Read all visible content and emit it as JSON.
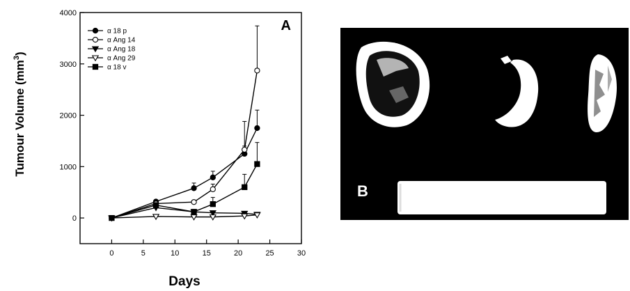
{
  "chart_data": {
    "type": "line",
    "panel_label": "A",
    "ylabel": "Tumour Volume (mm",
    "ylabel_superscript": "3",
    "ylabel_close": ")",
    "xlabel": "Days",
    "xlim": [
      -5,
      30
    ],
    "ylim": [
      -500,
      4000
    ],
    "xticks": [
      0,
      5,
      10,
      15,
      20,
      25,
      30
    ],
    "yticks": [
      0,
      1000,
      2000,
      3000,
      4000
    ],
    "grid": false,
    "legend_position": "top-left",
    "series": [
      {
        "name": "α 18 p",
        "marker": "circle-filled",
        "x": [
          0,
          7,
          13,
          16,
          21,
          23
        ],
        "y": [
          0,
          320,
          580,
          790,
          1250,
          1750
        ],
        "err": [
          0,
          30,
          100,
          120,
          150,
          350
        ]
      },
      {
        "name": "α Ang 14",
        "marker": "circle-open",
        "x": [
          0,
          7,
          13,
          16,
          21,
          23
        ],
        "y": [
          0,
          280,
          310,
          560,
          1330,
          2870
        ],
        "err": [
          0,
          20,
          30,
          100,
          550,
          870
        ]
      },
      {
        "name": "α Ang 18",
        "marker": "triangle-down-filled",
        "x": [
          0,
          7,
          13,
          16,
          21,
          23
        ],
        "y": [
          0,
          200,
          120,
          100,
          90,
          70
        ],
        "err": [
          0,
          20,
          20,
          15,
          15,
          10
        ]
      },
      {
        "name": "α Ang 29",
        "marker": "triangle-down-open",
        "x": [
          0,
          7,
          13,
          16,
          21,
          23
        ],
        "y": [
          0,
          30,
          20,
          20,
          40,
          60
        ],
        "err": [
          0,
          5,
          5,
          5,
          5,
          5
        ]
      },
      {
        "name": "α 18 v",
        "marker": "square-filled",
        "x": [
          0,
          7,
          13,
          16,
          21,
          23
        ],
        "y": [
          0,
          250,
          120,
          270,
          600,
          1050
        ],
        "err": [
          0,
          25,
          20,
          130,
          250,
          420
        ]
      }
    ]
  },
  "photo_panel": {
    "label": "B",
    "background": "#000000",
    "specimen_color": "#ffffff",
    "ruler_color": "#ffffff"
  }
}
